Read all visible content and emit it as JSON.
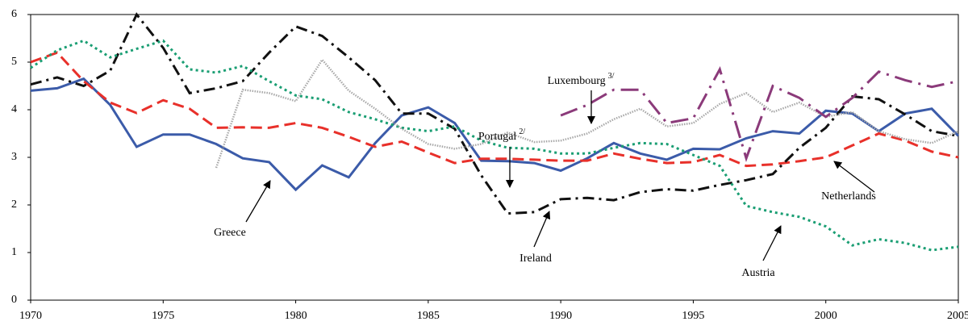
{
  "chart_data": {
    "type": "line",
    "x": [
      1970,
      1971,
      1972,
      1973,
      1974,
      1975,
      1976,
      1977,
      1978,
      1979,
      1980,
      1981,
      1982,
      1983,
      1984,
      1985,
      1986,
      1987,
      1988,
      1989,
      1990,
      1991,
      1992,
      1993,
      1994,
      1995,
      1996,
      1997,
      1998,
      1999,
      2000,
      2001,
      2002,
      2003,
      2004,
      2005
    ],
    "xlim": [
      1970,
      2005
    ],
    "xticks": [
      1970,
      1975,
      1980,
      1985,
      1990,
      1995,
      2000,
      2005
    ],
    "ylim": [
      0,
      6
    ],
    "yticks": [
      0,
      1,
      2,
      3,
      4,
      5,
      6
    ],
    "series": [
      {
        "name": "Greece",
        "color": "#3b5ba9",
        "dash": "solid",
        "values": [
          4.4,
          4.45,
          4.65,
          4.1,
          3.22,
          3.48,
          3.48,
          3.28,
          2.98,
          2.9,
          2.32,
          2.83,
          2.58,
          3.3,
          3.88,
          4.05,
          3.72,
          2.93,
          2.92,
          2.88,
          2.72,
          2.98,
          3.3,
          3.08,
          2.95,
          3.18,
          3.17,
          3.4,
          3.55,
          3.5,
          3.98,
          3.92,
          3.55,
          3.92,
          4.02,
          3.45
        ]
      },
      {
        "name": "Netherlands",
        "color": "#e8302a",
        "dash": "dashed",
        "values": [
          5.0,
          5.2,
          4.6,
          4.15,
          3.93,
          4.2,
          4.02,
          3.62,
          3.63,
          3.62,
          3.72,
          3.62,
          3.43,
          3.22,
          3.33,
          3.1,
          2.88,
          2.97,
          2.97,
          2.95,
          2.93,
          2.93,
          3.08,
          2.97,
          2.88,
          2.9,
          3.05,
          2.82,
          2.85,
          2.92,
          3.0,
          3.25,
          3.5,
          3.35,
          3.12,
          3.0
        ]
      },
      {
        "name": "Ireland",
        "color": "#111111",
        "dash": "dashdot",
        "values": [
          4.53,
          4.68,
          4.5,
          4.82,
          6.0,
          5.3,
          4.35,
          4.45,
          4.6,
          5.2,
          5.75,
          5.55,
          5.1,
          4.62,
          3.92,
          3.92,
          3.6,
          2.62,
          1.82,
          1.85,
          2.12,
          2.15,
          2.1,
          2.27,
          2.33,
          2.3,
          2.42,
          2.52,
          2.65,
          3.2,
          3.62,
          4.28,
          4.22,
          3.9,
          3.55,
          3.45
        ]
      },
      {
        "name": "Austria",
        "color": "#1a9e73",
        "dash": "dotted",
        "values": [
          4.88,
          5.25,
          5.45,
          5.1,
          5.28,
          5.45,
          4.85,
          4.78,
          4.92,
          4.6,
          4.3,
          4.22,
          3.95,
          3.8,
          3.62,
          3.55,
          3.65,
          3.35,
          3.2,
          3.18,
          3.08,
          3.08,
          3.2,
          3.3,
          3.28,
          3.05,
          2.82,
          1.98,
          1.85,
          1.75,
          1.55,
          1.15,
          1.28,
          1.2,
          1.05,
          1.12
        ]
      },
      {
        "name": "Portugal",
        "footnote_mark": "2/",
        "color": "#a8a8a8",
        "dash": "fine",
        "values": [
          null,
          null,
          null,
          null,
          null,
          null,
          null,
          2.78,
          4.42,
          4.35,
          4.18,
          5.05,
          4.4,
          4.02,
          3.6,
          3.28,
          3.18,
          3.28,
          3.52,
          3.32,
          3.35,
          3.5,
          3.8,
          4.02,
          3.65,
          3.72,
          4.12,
          4.35,
          3.95,
          4.15,
          3.85,
          3.95,
          3.55,
          3.38,
          3.3,
          3.55
        ]
      },
      {
        "name": "Luxembourg",
        "footnote_mark": "3/",
        "color": "#8b3a7a",
        "dash": "longdashdot",
        "values": [
          null,
          null,
          null,
          null,
          null,
          null,
          null,
          null,
          null,
          null,
          null,
          null,
          null,
          null,
          null,
          null,
          null,
          null,
          null,
          null,
          3.88,
          4.1,
          4.42,
          4.42,
          3.72,
          3.82,
          4.85,
          2.98,
          4.5,
          4.25,
          3.85,
          4.25,
          4.8,
          4.62,
          4.48,
          4.6
        ]
      }
    ]
  }
}
